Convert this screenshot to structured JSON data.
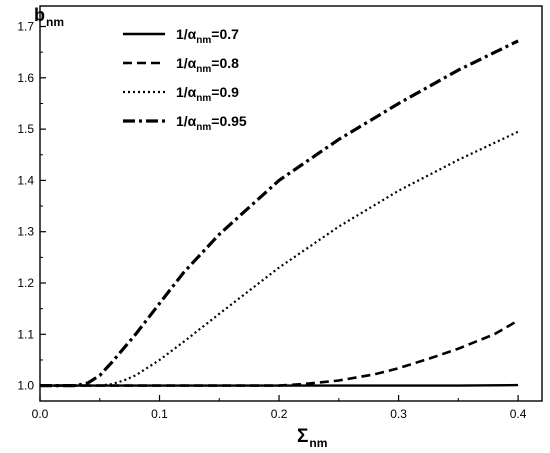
{
  "chart_data": {
    "type": "line",
    "title": "",
    "xlabel": {
      "main": "Σ",
      "sub": "nm"
    },
    "ylabel": {
      "main": "b",
      "sub": "nm"
    },
    "xlim": [
      0.0,
      0.42
    ],
    "ylim": [
      0.97,
      1.74
    ],
    "xticks": [
      0.0,
      0.1,
      0.2,
      0.3,
      0.4
    ],
    "xtick_labels": [
      "0.0",
      "0.1",
      "0.2",
      "0.3",
      "0.4"
    ],
    "yticks": [
      1.0,
      1.1,
      1.2,
      1.3,
      1.4,
      1.5,
      1.6,
      1.7
    ],
    "ytick_labels": [
      "1.0",
      "1.1",
      "1.2",
      "1.3",
      "1.4",
      "1.5",
      "1.6",
      "1.7"
    ],
    "grid": false,
    "legend_position": "top-left",
    "series": [
      {
        "label_prefix": "1/α",
        "label_sub": "nm",
        "label_suffix": "=0.7",
        "style": "solid",
        "x": [
          0.0,
          0.05,
          0.1,
          0.15,
          0.2,
          0.25,
          0.3,
          0.35,
          0.4
        ],
        "y": [
          1.0,
          1.0,
          1.0,
          1.0,
          1.0,
          1.0,
          1.0,
          1.0,
          1.001
        ]
      },
      {
        "label_prefix": "1/α",
        "label_sub": "nm",
        "label_suffix": "=0.8",
        "style": "dash",
        "x": [
          0.0,
          0.05,
          0.1,
          0.15,
          0.2,
          0.22,
          0.25,
          0.28,
          0.3,
          0.33,
          0.35,
          0.38,
          0.4
        ],
        "y": [
          1.0,
          1.0,
          1.0,
          1.0,
          1.0,
          1.003,
          1.01,
          1.022,
          1.034,
          1.056,
          1.072,
          1.1,
          1.127
        ]
      },
      {
        "label_prefix": "1/α",
        "label_sub": "nm",
        "label_suffix": "=0.9",
        "style": "dot",
        "x": [
          0.0,
          0.05,
          0.06,
          0.07,
          0.08,
          0.1,
          0.12,
          0.15,
          0.2,
          0.25,
          0.3,
          0.35,
          0.4
        ],
        "y": [
          1.0,
          1.0,
          1.003,
          1.01,
          1.02,
          1.05,
          1.085,
          1.14,
          1.23,
          1.31,
          1.38,
          1.44,
          1.495
        ]
      },
      {
        "label_prefix": "1/α",
        "label_sub": "nm",
        "label_suffix": "=0.95",
        "style": "dashdot",
        "x": [
          0.0,
          0.03,
          0.04,
          0.05,
          0.06,
          0.08,
          0.1,
          0.12,
          0.15,
          0.2,
          0.25,
          0.3,
          0.35,
          0.4
        ],
        "y": [
          1.0,
          1.0,
          1.005,
          1.02,
          1.045,
          1.1,
          1.16,
          1.22,
          1.295,
          1.4,
          1.48,
          1.55,
          1.615,
          1.672
        ]
      }
    ]
  }
}
